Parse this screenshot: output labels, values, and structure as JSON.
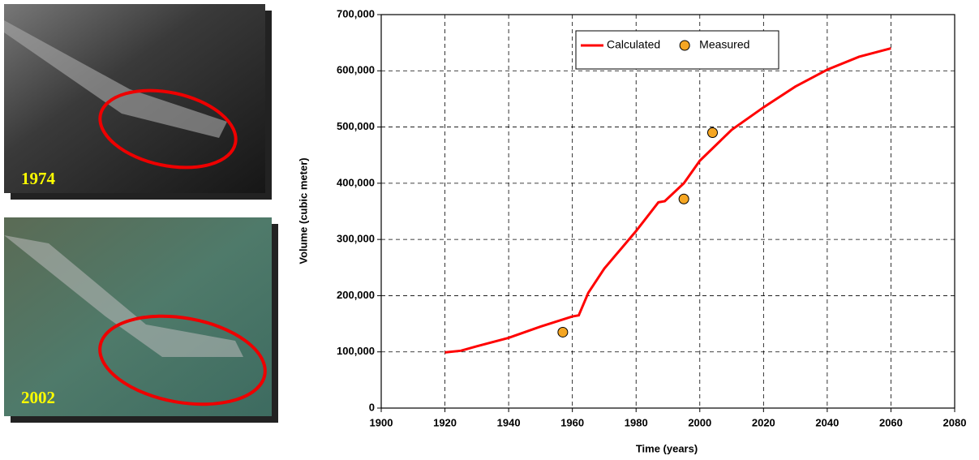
{
  "images": [
    {
      "label": "1974"
    },
    {
      "label": "2002"
    }
  ],
  "chart_data": {
    "type": "line",
    "xlabel": "Time (years)",
    "ylabel": "Volume (cubic meter)",
    "series": [
      {
        "name": "Calculated",
        "type": "line",
        "color": "#ff0000",
        "x": [
          1920,
          1925,
          1930,
          1940,
          1950,
          1960,
          1962,
          1965,
          1970,
          1980,
          1987,
          1989,
          1995,
          2000,
          2010,
          2020,
          2030,
          2040,
          2050,
          2060
        ],
        "values": [
          99000,
          102000,
          110000,
          125000,
          145000,
          163000,
          165000,
          205000,
          248000,
          315000,
          366000,
          368000,
          400000,
          440000,
          495000,
          535000,
          572000,
          602000,
          625000,
          640000
        ]
      },
      {
        "name": "Measured",
        "type": "scatter",
        "color": "#f5a623",
        "x": [
          1957,
          1995,
          2004
        ],
        "values": [
          135000,
          372000,
          490000
        ]
      }
    ],
    "xlim": [
      1900,
      2080
    ],
    "xticks": [
      1900,
      1920,
      1940,
      1960,
      1980,
      2000,
      2020,
      2040,
      2060,
      2080
    ],
    "ylim": [
      0,
      700000
    ],
    "yticks": [
      0,
      {
        "value": 100000,
        "label": "100,000"
      },
      {
        "value": 200000,
        "label": "200,000"
      },
      {
        "value": 300000,
        "label": "300,000"
      },
      {
        "value": 400000,
        "label": "400,000"
      },
      {
        "value": 500000,
        "label": "500,000"
      },
      {
        "value": 600000,
        "label": "600,000"
      },
      {
        "value": 700000,
        "label": "700,000"
      }
    ],
    "grid": true,
    "legend": "top"
  }
}
